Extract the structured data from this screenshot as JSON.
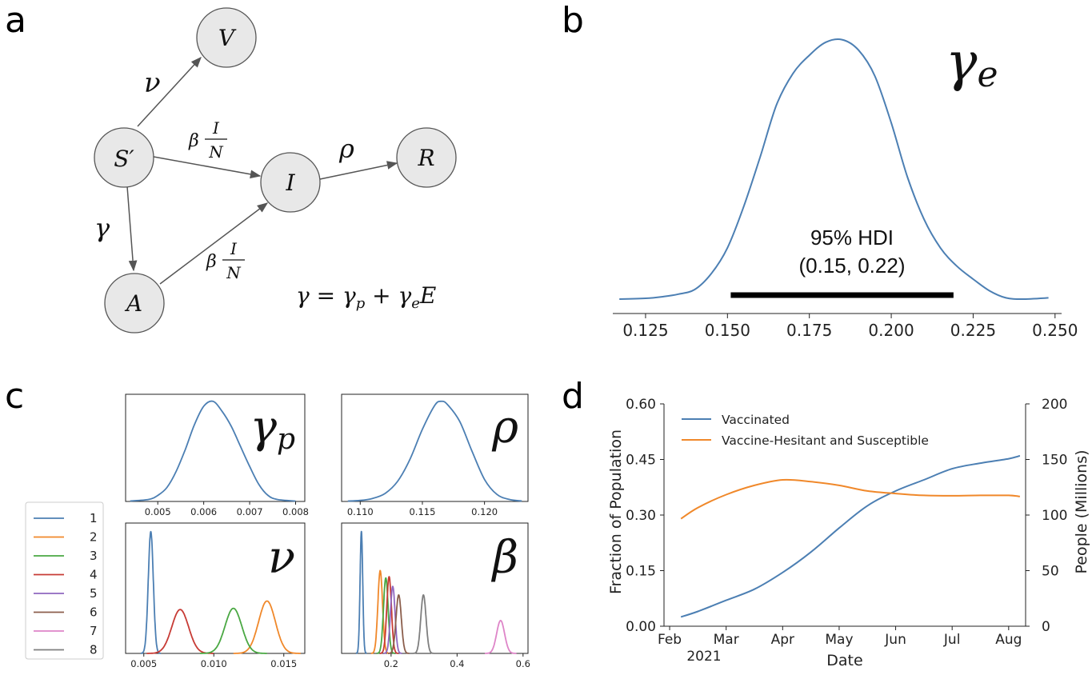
{
  "panel_labels": {
    "a": "a",
    "b": "b",
    "c": "c",
    "d": "d"
  },
  "colors": {
    "blue": "#4c7fb3",
    "orange": "#f0882a",
    "green": "#4aa843",
    "red": "#c73b35",
    "purple": "#8f67bf",
    "brown": "#8b5e4c",
    "pink": "#de85c8",
    "gray": "#7f7f7f"
  },
  "diagram": {
    "nodes": {
      "V": "V",
      "S": "S′",
      "I": "I",
      "R": "R",
      "A": "A"
    },
    "edges": {
      "nu": "ν",
      "beta": "β",
      "frac_num": "I",
      "frac_den": "N",
      "rho": "ρ",
      "gamma": "γ"
    },
    "equation": {
      "lhs": "γ = γ",
      "p_sub": "p",
      "plus": " + γ",
      "e_sub": "e",
      "tail": "E"
    }
  },
  "chart_data": [
    {
      "id": "b",
      "type": "line",
      "title_symbol": "γ",
      "title_sub": "e",
      "xlim": [
        0.115,
        0.252
      ],
      "ylim": [
        0,
        1.05
      ],
      "xticks": [
        0.125,
        0.15,
        0.175,
        0.2,
        0.225,
        0.25
      ],
      "xtick_labels": [
        "0.125",
        "0.150",
        "0.175",
        "0.200",
        "0.225",
        "0.250"
      ],
      "x": [
        0.117,
        0.125,
        0.13,
        0.135,
        0.14,
        0.145,
        0.15,
        0.155,
        0.16,
        0.165,
        0.17,
        0.175,
        0.18,
        0.185,
        0.19,
        0.195,
        0.2,
        0.205,
        0.21,
        0.215,
        0.22,
        0.225,
        0.23,
        0.235,
        0.24,
        0.248
      ],
      "y": [
        0.003,
        0.006,
        0.012,
        0.022,
        0.04,
        0.1,
        0.2,
        0.36,
        0.55,
        0.75,
        0.87,
        0.94,
        0.99,
        1.0,
        0.96,
        0.86,
        0.68,
        0.47,
        0.31,
        0.2,
        0.13,
        0.08,
        0.035,
        0.008,
        0.003,
        0.008
      ],
      "hdi": {
        "label": "95% HDI",
        "interval_label": "(0.15, 0.22)",
        "low": 0.151,
        "high": 0.219
      }
    },
    {
      "id": "c",
      "type": "line",
      "legend": [
        "1",
        "2",
        "3",
        "4",
        "5",
        "6",
        "7",
        "8"
      ],
      "subplots": [
        {
          "id": "gamma_p",
          "symbol": "γ",
          "sub": "p",
          "xlim": [
            0.0043,
            0.0082
          ],
          "xticks": [
            0.005,
            0.006,
            0.007,
            0.008
          ],
          "xtick_labels": [
            "0.005",
            "0.006",
            "0.007",
            "0.008"
          ],
          "ylim": [
            0,
            1.07
          ],
          "series": [
            {
              "name": "1",
              "color_key": "blue",
              "x": [
                0.0044,
                0.0048,
                0.005,
                0.0052,
                0.0054,
                0.0056,
                0.0058,
                0.006,
                0.0062,
                0.0064,
                0.0066,
                0.0068,
                0.007,
                0.0072,
                0.0074,
                0.0076,
                0.008
              ],
              "y": [
                0.005,
                0.02,
                0.06,
                0.14,
                0.3,
                0.52,
                0.77,
                0.95,
                1.0,
                0.9,
                0.75,
                0.55,
                0.35,
                0.17,
                0.06,
                0.02,
                0.004
              ]
            }
          ]
        },
        {
          "id": "rho",
          "symbol": "ρ",
          "sub": "",
          "xlim": [
            0.1085,
            0.1235
          ],
          "xticks": [
            0.11,
            0.115,
            0.12
          ],
          "xtick_labels": [
            "0.110",
            "0.115",
            "0.120"
          ],
          "ylim": [
            0,
            1.07
          ],
          "series": [
            {
              "name": "1",
              "color_key": "blue",
              "x": [
                0.109,
                0.11,
                0.111,
                0.112,
                0.113,
                0.114,
                0.115,
                0.116,
                0.1165,
                0.117,
                0.118,
                0.119,
                0.12,
                0.121,
                0.122,
                0.123
              ],
              "y": [
                0.004,
                0.01,
                0.03,
                0.08,
                0.2,
                0.42,
                0.72,
                0.96,
                1.0,
                0.97,
                0.8,
                0.5,
                0.22,
                0.07,
                0.02,
                0.005
              ]
            }
          ]
        },
        {
          "id": "nu",
          "symbol": "ν",
          "sub": "",
          "xlim": [
            0.0037,
            0.0165
          ],
          "xticks": [
            0.005,
            0.01,
            0.015
          ],
          "xtick_labels": [
            "0.005",
            "0.010",
            "0.015"
          ],
          "ylim": [
            0,
            1.07
          ],
          "series": [
            {
              "name": "1",
              "color_key": "blue",
              "center": 0.0055,
              "sd": 0.00018,
              "height": 1.0
            },
            {
              "name": "4",
              "color_key": "red",
              "center": 0.0076,
              "sd": 0.0006,
              "height": 0.36
            },
            {
              "name": "2",
              "color_key": "orange",
              "center": 0.0138,
              "sd": 0.0006,
              "height": 0.43
            },
            {
              "name": "3",
              "color_key": "green",
              "center": 0.0114,
              "sd": 0.0006,
              "height": 0.37
            }
          ]
        },
        {
          "id": "beta",
          "symbol": "β",
          "sub": "",
          "xlim": [
            0.05,
            0.615
          ],
          "xticks": [
            0.2,
            0.4,
            0.6
          ],
          "xtick_labels": [
            "0.2",
            "0.4",
            "0.6"
          ],
          "ylim": [
            0,
            1.07
          ],
          "series": [
            {
              "name": "1",
              "color_key": "blue",
              "center": 0.11,
              "sd": 0.004,
              "height": 1.0
            },
            {
              "name": "2",
              "color_key": "orange",
              "center": 0.167,
              "sd": 0.007,
              "height": 0.68
            },
            {
              "name": "3",
              "color_key": "green",
              "center": 0.184,
              "sd": 0.007,
              "height": 0.62
            },
            {
              "name": "4",
              "color_key": "red",
              "center": 0.194,
              "sd": 0.007,
              "height": 0.63
            },
            {
              "name": "5",
              "color_key": "purple",
              "center": 0.205,
              "sd": 0.007,
              "height": 0.55
            },
            {
              "name": "6",
              "color_key": "brown",
              "center": 0.223,
              "sd": 0.008,
              "height": 0.48
            },
            {
              "name": "8",
              "color_key": "gray",
              "center": 0.298,
              "sd": 0.008,
              "height": 0.48
            },
            {
              "name": "7",
              "color_key": "pink",
              "center": 0.532,
              "sd": 0.012,
              "height": 0.27
            }
          ]
        }
      ]
    },
    {
      "id": "d",
      "type": "line",
      "xlabel": "Date",
      "ylabel": "Fraction of Population",
      "ylabel_right": "People (Millions)",
      "x_ticks": [
        0,
        1,
        2,
        3,
        4,
        5,
        6
      ],
      "x_tick_labels": [
        "Feb",
        "Mar",
        "Apr",
        "May",
        "Jun",
        "Jul",
        "Aug"
      ],
      "x_sub_label": "2021",
      "xlim": [
        -0.1,
        6.3
      ],
      "ylim": [
        0,
        0.6
      ],
      "yticks": [
        0.0,
        0.15,
        0.3,
        0.45,
        0.6
      ],
      "ytick_labels": [
        "0.00",
        "0.15",
        "0.30",
        "0.45",
        "0.60"
      ],
      "ylim_right": [
        0,
        200
      ],
      "yticks_right": [
        0,
        50,
        100,
        150,
        200
      ],
      "ytick_labels_right": [
        "0",
        "50",
        "100",
        "150",
        "200"
      ],
      "legend_position": "top-left",
      "series": [
        {
          "name": "Vaccinated",
          "color_key": "blue",
          "x": [
            0.2,
            0.5,
            1.0,
            1.5,
            2.0,
            2.5,
            3.0,
            3.5,
            4.0,
            4.5,
            5.0,
            5.5,
            6.0,
            6.2
          ],
          "y": [
            0.025,
            0.04,
            0.07,
            0.1,
            0.145,
            0.2,
            0.265,
            0.325,
            0.365,
            0.395,
            0.425,
            0.44,
            0.452,
            0.46
          ]
        },
        {
          "name": "Vaccine-Hesitant and Susceptible",
          "color_key": "orange",
          "x": [
            0.2,
            0.5,
            1.0,
            1.5,
            2.0,
            2.5,
            3.0,
            3.5,
            4.0,
            4.5,
            5.0,
            5.5,
            6.0,
            6.2
          ],
          "y": [
            0.29,
            0.32,
            0.355,
            0.38,
            0.395,
            0.39,
            0.38,
            0.365,
            0.358,
            0.353,
            0.352,
            0.353,
            0.353,
            0.35
          ]
        }
      ]
    }
  ]
}
